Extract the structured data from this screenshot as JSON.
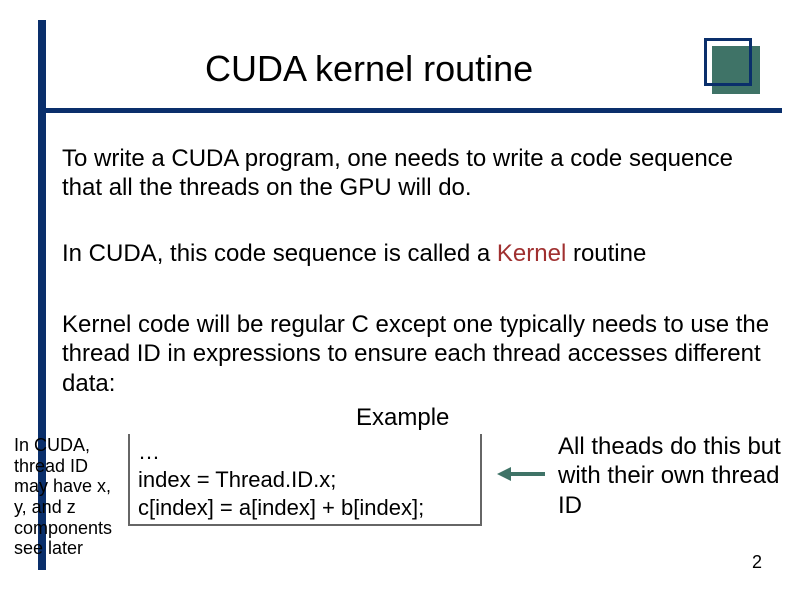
{
  "title": "CUDA kernel routine",
  "para1": "To write a CUDA program, one needs to write a code sequence that all the threads on the GPU will do.",
  "para2_a": "In CUDA, this code sequence is called a ",
  "para2_kernel": "Kernel",
  "para2_b": " routine",
  "para3": "Kernel code will be regular C except one typically needs to use the thread ID in expressions to ensure each thread accesses different data:",
  "example_label": "Example",
  "left_note": "In CUDA, thread ID may have x, y, and z components see later",
  "code_l1": "…",
  "code_l2": "index = Thread.ID.x;",
  "code_l3": "c[index] = a[index] + b[index];",
  "right_note": "All theads do this but with their own thread ID",
  "page_number": "2",
  "colors": {
    "accent_navy": "#0a2f6b",
    "accent_teal": "#3f7367",
    "kernel_red": "#a03030",
    "text": "#000000",
    "background": "#ffffff"
  },
  "layout": {
    "slide_width": 794,
    "slide_height": 595,
    "title_fontsize": 36,
    "body_fontsize": 24,
    "sidenote_fontsize": 18
  }
}
